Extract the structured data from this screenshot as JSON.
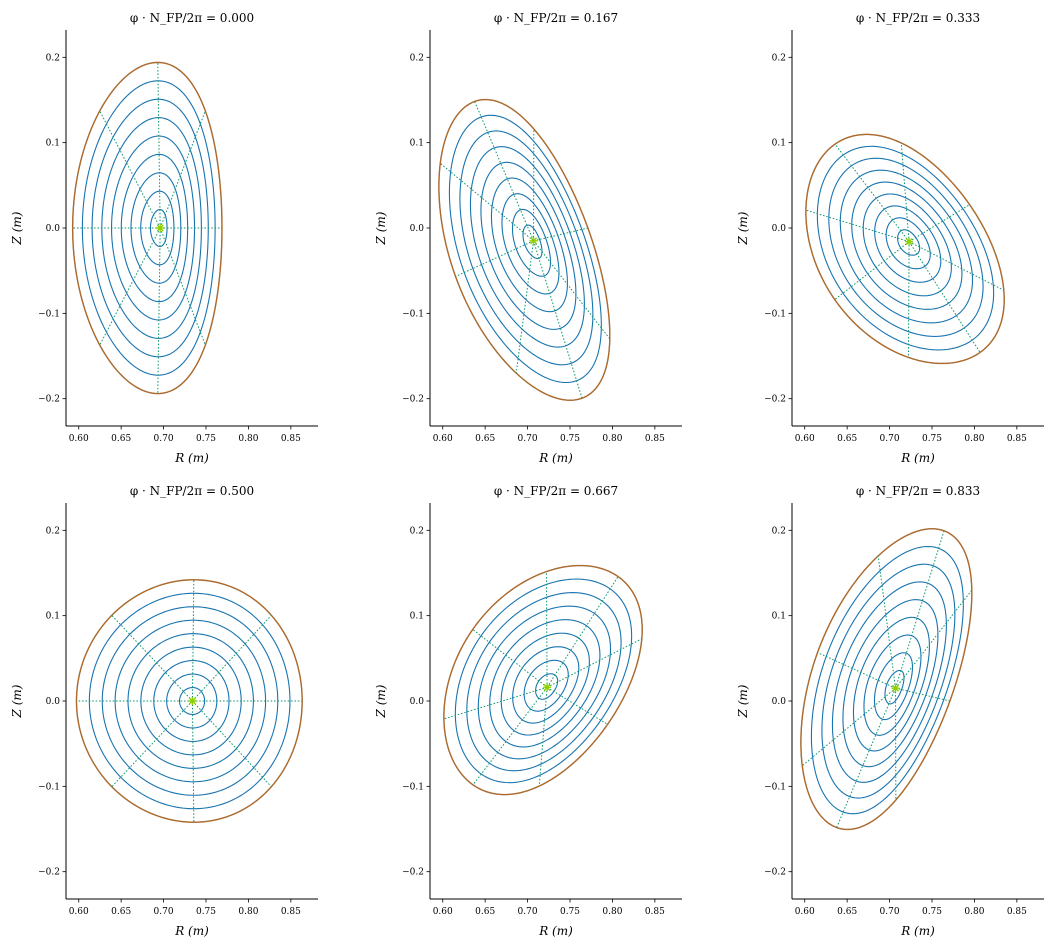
{
  "colors": {
    "flux_surface": "#1874b0",
    "boundary": "#b06a2a",
    "poloidal_line": "#0e9a72",
    "axis_marker": "#8fd000",
    "axis_spine": "#000000"
  },
  "chart_data": [
    {
      "type": "line",
      "title_prefix": "φ · N_FP/2π = ",
      "title_value": "0.000",
      "xlabel": "R (m)",
      "ylabel": "Z (m)",
      "xlim": [
        0.585,
        0.882
      ],
      "ylim": [
        -0.232,
        0.232
      ],
      "xticks": [
        "0.60",
        "0.65",
        "0.70",
        "0.75",
        "0.80",
        "0.85"
      ],
      "yticks": [
        "−0.2",
        "−0.1",
        "0.0",
        "0.1",
        "0.2"
      ],
      "magnetic_axis": [
        0.696,
        0.0
      ],
      "boundary": {
        "center": [
          0.687,
          0.0
        ],
        "semi_axes": [
          0.088,
          0.194
        ],
        "tilt_deg": 0,
        "lean": -0.07
      },
      "flux_surfaces": 9,
      "poloidal_lines": 8
    },
    {
      "type": "line",
      "title_prefix": "φ · N_FP/2π = ",
      "title_value": "0.167",
      "xlabel": "R (m)",
      "ylabel": "Z (m)",
      "xlim": [
        0.585,
        0.882
      ],
      "ylim": [
        -0.232,
        0.232
      ],
      "xticks": [
        "0.60",
        "0.65",
        "0.70",
        "0.75",
        "0.80",
        "0.85"
      ],
      "yticks": [
        "−0.2",
        "−0.1",
        "0.0",
        "0.1",
        "0.2"
      ],
      "magnetic_axis": [
        0.707,
        -0.015
      ],
      "boundary": {
        "center": [
          0.697,
          -0.027
        ],
        "semi_axes": [
          0.083,
          0.185
        ],
        "tilt_deg": 20,
        "lean": -0.05
      },
      "flux_surfaces": 9,
      "poloidal_lines": 8
    },
    {
      "type": "line",
      "title_prefix": "φ · N_FP/2π = ",
      "title_value": "0.333",
      "xlabel": "R (m)",
      "ylabel": "Z (m)",
      "xlim": [
        0.585,
        0.882
      ],
      "ylim": [
        -0.232,
        0.232
      ],
      "xticks": [
        "0.60",
        "0.65",
        "0.70",
        "0.75",
        "0.80",
        "0.85"
      ],
      "yticks": [
        "−0.2",
        "−0.1",
        "0.0",
        "0.1",
        "0.2"
      ],
      "magnetic_axis": [
        0.723,
        -0.016
      ],
      "boundary": {
        "center": [
          0.718,
          -0.026
        ],
        "semi_axes": [
          0.097,
          0.149
        ],
        "tilt_deg": 35,
        "lean": -0.04
      },
      "flux_surfaces": 9,
      "poloidal_lines": 8
    },
    {
      "type": "line",
      "title_prefix": "φ · N_FP/2π = ",
      "title_value": "0.500",
      "xlabel": "R (m)",
      "ylabel": "Z (m)",
      "xlim": [
        0.585,
        0.882
      ],
      "ylim": [
        -0.232,
        0.232
      ],
      "xticks": [
        "0.60",
        "0.65",
        "0.70",
        "0.75",
        "0.80",
        "0.85"
      ],
      "yticks": [
        "−0.2",
        "−0.1",
        "0.0",
        "0.1",
        "0.2"
      ],
      "magnetic_axis": [
        0.734,
        0.0
      ],
      "boundary": {
        "center": [
          0.733,
          0.0
        ],
        "semi_axes": [
          0.133,
          0.142
        ],
        "tilt_deg": 0,
        "lean": -0.02
      },
      "flux_surfaces": 9,
      "poloidal_lines": 8
    },
    {
      "type": "line",
      "title_prefix": "φ · N_FP/2π = ",
      "title_value": "0.667",
      "xlabel": "R (m)",
      "ylabel": "Z (m)",
      "xlim": [
        0.585,
        0.882
      ],
      "ylim": [
        -0.232,
        0.232
      ],
      "xticks": [
        "0.60",
        "0.65",
        "0.70",
        "0.75",
        "0.80",
        "0.85"
      ],
      "yticks": [
        "−0.2",
        "−0.1",
        "0.0",
        "0.1",
        "0.2"
      ],
      "magnetic_axis": [
        0.723,
        0.016
      ],
      "boundary": {
        "center": [
          0.718,
          0.026
        ],
        "semi_axes": [
          0.097,
          0.149
        ],
        "tilt_deg": -35,
        "lean": -0.04
      },
      "flux_surfaces": 9,
      "poloidal_lines": 8
    },
    {
      "type": "line",
      "title_prefix": "φ · N_FP/2π = ",
      "title_value": "0.833",
      "xlabel": "R (m)",
      "ylabel": "Z (m)",
      "xlim": [
        0.585,
        0.882
      ],
      "ylim": [
        -0.232,
        0.232
      ],
      "xticks": [
        "0.60",
        "0.65",
        "0.70",
        "0.75",
        "0.80",
        "0.85"
      ],
      "yticks": [
        "−0.2",
        "−0.1",
        "0.0",
        "0.1",
        "0.2"
      ],
      "magnetic_axis": [
        0.707,
        0.015
      ],
      "boundary": {
        "center": [
          0.697,
          0.027
        ],
        "semi_axes": [
          0.083,
          0.185
        ],
        "tilt_deg": -20,
        "lean": -0.05
      },
      "flux_surfaces": 9,
      "poloidal_lines": 8
    }
  ]
}
